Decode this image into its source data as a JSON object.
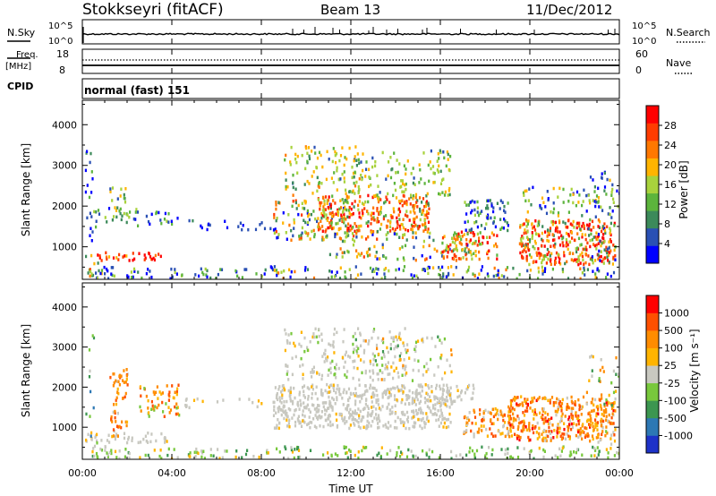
{
  "header": {
    "station": "Stokkseyri (fitACF)",
    "beam": "Beam 13",
    "date": "11/Dec/2012"
  },
  "noise_panel": {
    "left_label": "N.Sky",
    "right_label": "N.Search",
    "ticks": [
      "10^5",
      "10^0"
    ]
  },
  "freq_panel": {
    "left_label_top": "Freq.",
    "left_label_unit": "[MHz]",
    "left_ticks": [
      "18",
      "8"
    ],
    "right_label": "Nave",
    "right_ticks": [
      "60",
      "0"
    ]
  },
  "cpid": {
    "label": "CPID",
    "value": "normal (fast) 151"
  },
  "chart_data": [
    {
      "type": "heatmap",
      "name": "power",
      "ylabel": "Slant Range [km]",
      "yticks": [
        "4000",
        "3000",
        "2000",
        "1000"
      ],
      "ylim": [
        200,
        4600
      ],
      "xlim": [
        0,
        24
      ],
      "colorbar": {
        "label": "Power [dB]",
        "ticks": [
          "28",
          "24",
          "20",
          "16",
          "12",
          "8",
          "4"
        ],
        "colors": [
          "#0000ff",
          "#2a50b4",
          "#3c8a5a",
          "#5cb43c",
          "#a8d23c",
          "#ffb400",
          "#ff7800",
          "#ff3c00",
          "#ff0000"
        ]
      }
    },
    {
      "type": "heatmap",
      "name": "velocity",
      "ylabel": "Slant Range [km]",
      "yticks": [
        "4000",
        "3000",
        "2000",
        "1000"
      ],
      "ylim": [
        200,
        4600
      ],
      "xlim": [
        0,
        24
      ],
      "colorbar": {
        "label": "Velocity [m s⁻¹]",
        "ticks": [
          "1000",
          "500",
          "100",
          "25",
          "-25",
          "-100",
          "-500",
          "-1000"
        ],
        "colors": [
          "#1e32c8",
          "#2d78b4",
          "#3c9650",
          "#78c83c",
          "#c8c8c0",
          "#ffb400",
          "#ff8c00",
          "#ff5000",
          "#ff0000"
        ]
      }
    }
  ],
  "time_axis": {
    "label": "Time UT",
    "ticks": [
      "00:00",
      "04:00",
      "08:00",
      "12:00",
      "16:00",
      "20:00",
      "00:00"
    ]
  }
}
